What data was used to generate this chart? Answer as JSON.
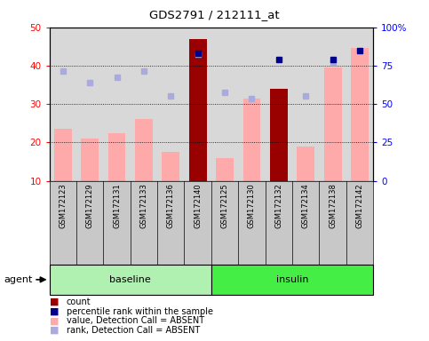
{
  "title": "GDS2791 / 212111_at",
  "samples": [
    "GSM172123",
    "GSM172129",
    "GSM172131",
    "GSM172133",
    "GSM172136",
    "GSM172140",
    "GSM172125",
    "GSM172130",
    "GSM172132",
    "GSM172134",
    "GSM172138",
    "GSM172142"
  ],
  "groups": [
    "baseline",
    "baseline",
    "baseline",
    "baseline",
    "baseline",
    "baseline",
    "insulin",
    "insulin",
    "insulin",
    "insulin",
    "insulin",
    "insulin"
  ],
  "bar_values": [
    23.5,
    21.0,
    22.5,
    26.0,
    17.5,
    47.0,
    16.0,
    31.5,
    34.0,
    19.0,
    39.5,
    44.5
  ],
  "bar_colors": [
    "#ffaaaa",
    "#ffaaaa",
    "#ffaaaa",
    "#ffaaaa",
    "#ffaaaa",
    "#990000",
    "#ffaaaa",
    "#ffaaaa",
    "#990000",
    "#ffaaaa",
    "#ffaaaa",
    "#ffaaaa"
  ],
  "rank_dots": [
    38.5,
    35.5,
    37.0,
    38.5,
    32.0,
    43.0,
    33.0,
    31.5,
    null,
    32.0,
    41.0,
    null
  ],
  "rank_dot_colors": [
    "#aaaadd",
    "#aaaadd",
    "#aaaadd",
    "#aaaadd",
    "#aaaadd",
    "#aaaadd",
    "#aaaadd",
    "#aaaadd",
    null,
    "#aaaadd",
    "#aaaadd",
    null
  ],
  "pct_dots_right": [
    null,
    null,
    null,
    null,
    null,
    83.0,
    null,
    null,
    79.0,
    null,
    79.0,
    85.0
  ],
  "pct_dot_colors": [
    null,
    null,
    null,
    null,
    null,
    "#000088",
    null,
    null,
    "#000088",
    null,
    "#000088",
    "#000088"
  ],
  "ylim_left": [
    10,
    50
  ],
  "ylim_right": [
    0,
    100
  ],
  "yticks_left": [
    10,
    20,
    30,
    40,
    50
  ],
  "yticks_right": [
    0,
    25,
    50,
    75,
    100
  ],
  "ytick_labels_right": [
    "0",
    "25",
    "50",
    "75",
    "100%"
  ],
  "bar_area_bg": "#d8d8d8",
  "xlabel_bg": "#c8c8c8",
  "baseline_color": "#b0f0b0",
  "insulin_color": "#44ee44",
  "legend_items": [
    {
      "label": "count",
      "color": "#990000"
    },
    {
      "label": "percentile rank within the sample",
      "color": "#000088"
    },
    {
      "label": "value, Detection Call = ABSENT",
      "color": "#ffaaaa"
    },
    {
      "label": "rank, Detection Call = ABSENT",
      "color": "#aaaadd"
    }
  ]
}
